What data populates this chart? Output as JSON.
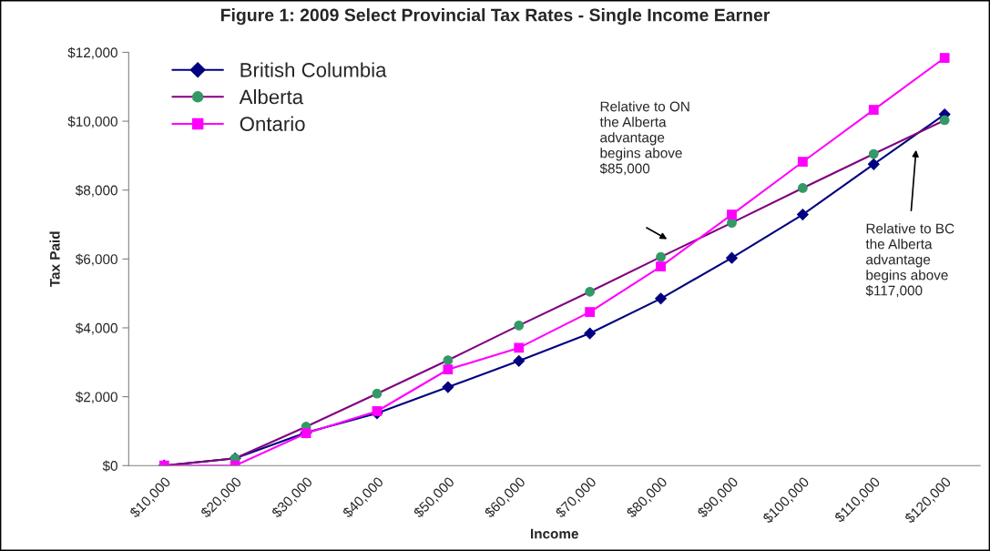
{
  "chart_data": {
    "type": "line",
    "title": "Figure 1: 2009 Select Provincial Tax Rates - Single Income Earner",
    "xlabel": "Income",
    "ylabel": "Tax Paid",
    "categories": [
      "$10,000",
      "$20,000",
      "$30,000",
      "$40,000",
      "$50,000",
      "$60,000",
      "$70,000",
      "$80,000",
      "$90,000",
      "$100,000",
      "$110,000",
      "$120,000"
    ],
    "series": [
      {
        "name": "British Columbia",
        "color": "#000080",
        "marker": "diamond",
        "values": [
          0,
          210,
          960,
          1520,
          2280,
          3040,
          3840,
          4850,
          6030,
          7290,
          8750,
          10200
        ]
      },
      {
        "name": "Alberta",
        "color": "#800080",
        "marker": "circle",
        "values": [
          0,
          210,
          1130,
          2090,
          3060,
          4070,
          5050,
          6060,
          7050,
          8060,
          9050,
          10030
        ]
      },
      {
        "name": "Ontario",
        "color": "#ff00ff",
        "marker": "square",
        "values": [
          0,
          0,
          940,
          1580,
          2790,
          3420,
          4460,
          5780,
          7290,
          8820,
          10330,
          11840
        ]
      }
    ],
    "ylim": [
      0,
      12000
    ],
    "yticks": [
      {
        "value": 0,
        "label": "$0"
      },
      {
        "value": 2000,
        "label": "$2,000"
      },
      {
        "value": 4000,
        "label": "$4,000"
      },
      {
        "value": 6000,
        "label": "$6,000"
      },
      {
        "value": 8000,
        "label": "$8,000"
      },
      {
        "value": 10000,
        "label": "$10,000"
      },
      {
        "value": 12000,
        "label": "$12,000"
      }
    ],
    "annotations": [
      "Relative to ON\nthe Alberta\nadvantage\nbegins above\n$85,000",
      "Relative to BC\nthe Alberta\nadvantage\nbegins above\n$117,000"
    ],
    "grid": false,
    "legend": "top left",
    "line_style": "solid"
  }
}
